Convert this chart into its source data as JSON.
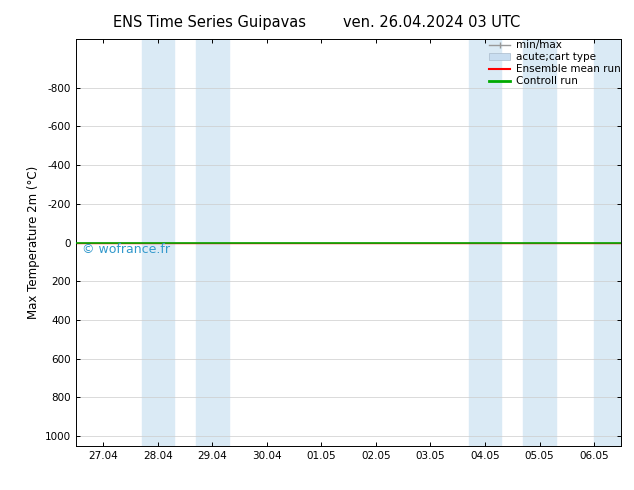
{
  "title_left": "ENS Time Series Guipavas",
  "title_right": "ven. 26.04.2024 03 UTC",
  "ylabel": "Max Temperature 2m (°C)",
  "ylim_top": -1050,
  "ylim_bottom": 1050,
  "yticks": [
    -800,
    -600,
    -400,
    -200,
    0,
    200,
    400,
    600,
    800,
    1000
  ],
  "x_labels": [
    "27.04",
    "28.04",
    "29.04",
    "30.04",
    "01.05",
    "02.05",
    "03.05",
    "04.05",
    "05.05",
    "06.05"
  ],
  "x_positions": [
    0,
    1,
    2,
    3,
    4,
    5,
    6,
    7,
    8,
    9
  ],
  "xlim": [
    -0.5,
    9.5
  ],
  "shaded_bands": [
    [
      0.7,
      1.3
    ],
    [
      1.7,
      2.3
    ],
    [
      6.7,
      7.3
    ],
    [
      7.7,
      8.3
    ],
    [
      9.0,
      9.5
    ]
  ],
  "band_color": "#daeaf5",
  "green_line_y": 0,
  "green_line_color": "#00aa00",
  "red_line_color": "#ff0000",
  "watermark": "© wofrance.fr",
  "watermark_color": "#3399cc",
  "background_color": "#ffffff",
  "legend_minmax_color": "#999999",
  "legend_band_color": "#c8ddf0",
  "legend_band_edge": "#aabbcc"
}
